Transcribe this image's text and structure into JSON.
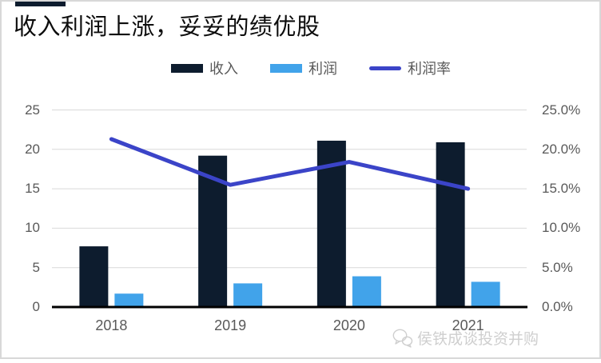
{
  "card": {
    "title": "收入利润上涨，妥妥的绩优股",
    "watermark_text": "侯铁成谈投资并购",
    "watermark_icon": "wechat-chat-bubbles-icon"
  },
  "colors": {
    "revenue_bar": "#0d1c2e",
    "profit_bar": "#41a3ea",
    "margin_line": "#3b44c8",
    "gridline": "#d9d9d9",
    "axis_line": "#000000",
    "axis_text": "#595959",
    "accent_bar": "#0d1c2e",
    "watermark": "#cfcfcf",
    "card_border": "#d8d8d8"
  },
  "legend": {
    "items": [
      {
        "label": "收入",
        "series": "revenue",
        "swatch": "bar",
        "color": "#0d1c2e"
      },
      {
        "label": "利润",
        "series": "profit",
        "swatch": "bar",
        "color": "#41a3ea"
      },
      {
        "label": "利润率",
        "series": "margin",
        "swatch": "line",
        "color": "#3b44c8"
      }
    ]
  },
  "chart_data": {
    "type": "bar",
    "subtype": "combo-bar-line-dual-axis",
    "title": "收入利润上涨，妥妥的绩优股",
    "categories": [
      "2018",
      "2019",
      "2020",
      "2021"
    ],
    "series": [
      {
        "name": "收入",
        "type": "bar",
        "axis": "left",
        "color": "#0d1c2e",
        "values": [
          7.7,
          19.2,
          21.1,
          20.9
        ]
      },
      {
        "name": "利润",
        "type": "bar",
        "axis": "left",
        "color": "#41a3ea",
        "values": [
          1.7,
          3.0,
          3.9,
          3.2
        ]
      },
      {
        "name": "利润率",
        "type": "line",
        "axis": "right",
        "color": "#3b44c8",
        "values_percent": [
          21.3,
          15.5,
          18.4,
          15.0
        ]
      }
    ],
    "left_axis": {
      "min": 0,
      "max": 25,
      "tick_step": 5,
      "ticks": [
        "0",
        "5",
        "10",
        "15",
        "20",
        "25"
      ]
    },
    "right_axis": {
      "min": 0,
      "max": 25,
      "tick_step": 5,
      "ticks": [
        "0.0%",
        "5.0%",
        "10.0%",
        "15.0%",
        "20.0%",
        "25.0%"
      ]
    },
    "grid": "horizontal",
    "legend_position": "top",
    "xlabel": "",
    "ylabel": ""
  }
}
